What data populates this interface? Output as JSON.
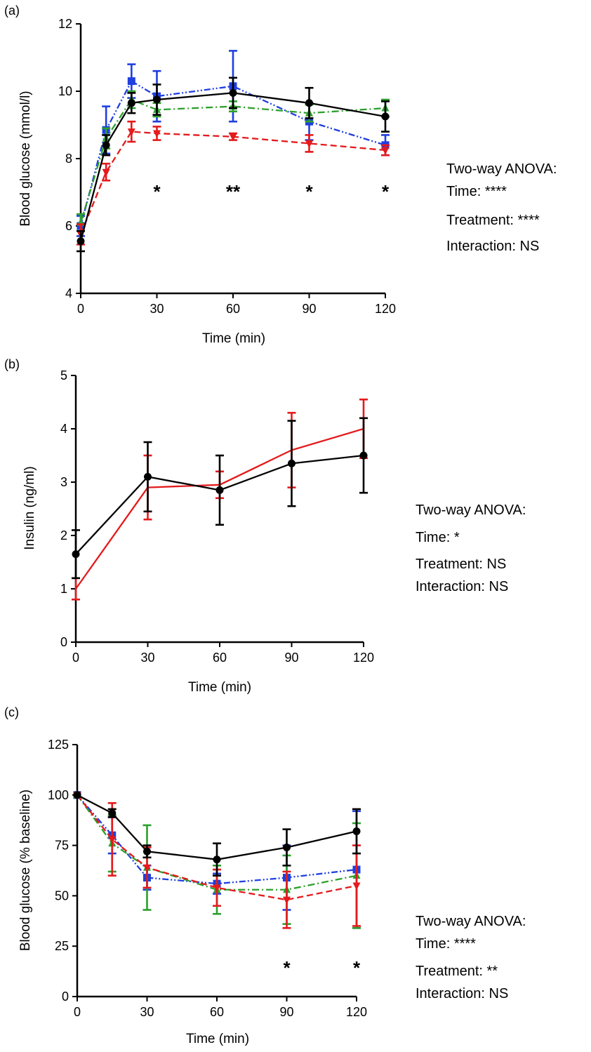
{
  "chart_data": [
    {
      "panel_label": "(a)",
      "type": "line",
      "xlabel": "Time (min)",
      "ylabel": "Blood glucose (mmol/l)",
      "xlim": [
        0,
        120
      ],
      "ylim": [
        4,
        12
      ],
      "xticks": [
        0,
        30,
        60,
        90,
        120
      ],
      "yticks": [
        4,
        6,
        8,
        10,
        12
      ],
      "grid": false,
      "legend": "none",
      "series": [
        {
          "color": "#000000",
          "line_style": "solid",
          "marker": "circle",
          "points": [
            [
              0,
              5.55,
              0.3
            ],
            [
              10,
              8.4,
              0.3
            ],
            [
              20,
              9.65,
              0.3
            ],
            [
              30,
              9.75,
              0.45
            ],
            [
              60,
              9.95,
              0.45
            ],
            [
              90,
              9.65,
              0.45
            ],
            [
              120,
              9.25,
              0.45
            ]
          ]
        },
        {
          "color": "#e41a1c",
          "line_style": "dashed",
          "marker": "triangle-down",
          "points": [
            [
              0,
              5.75,
              0.3
            ],
            [
              10,
              7.6,
              0.25
            ],
            [
              20,
              8.8,
              0.3
            ],
            [
              30,
              8.75,
              0.2
            ],
            [
              60,
              8.65,
              0.1
            ],
            [
              90,
              8.45,
              0.25
            ],
            [
              120,
              8.25,
              0.15
            ]
          ]
        },
        {
          "color": "#2ca02c",
          "line_style": "dash-dot",
          "marker": "triangle-up",
          "points": [
            [
              0,
              6.1,
              0.25
            ],
            [
              10,
              8.6,
              0.3
            ],
            [
              20,
              9.75,
              0.25
            ],
            [
              30,
              9.45,
              0.2
            ],
            [
              60,
              9.55,
              0.15
            ],
            [
              90,
              9.35,
              0.25
            ],
            [
              120,
              9.5,
              0.25
            ]
          ]
        },
        {
          "color": "#1f3fe0",
          "line_style": "dash-dot-dot",
          "marker": "square",
          "points": [
            [
              0,
              6.0,
              0.3
            ],
            [
              10,
              8.85,
              0.7
            ],
            [
              20,
              10.3,
              0.5
            ],
            [
              30,
              9.85,
              0.75
            ],
            [
              60,
              10.15,
              1.05
            ],
            [
              90,
              9.1,
              0.55
            ],
            [
              120,
              8.4,
              0.3
            ]
          ]
        }
      ],
      "significance": [
        {
          "x": 30,
          "label": "*"
        },
        {
          "x": 60,
          "label": "**"
        },
        {
          "x": 90,
          "label": "*"
        },
        {
          "x": 120,
          "label": "*"
        }
      ],
      "annotation": [
        "Two-way ANOVA:",
        "Time: ****",
        "Treatment: ****",
        "Interaction: NS"
      ]
    },
    {
      "panel_label": "(b)",
      "type": "line",
      "xlabel": "Time (min)",
      "ylabel": "Insulin (ng/ml)",
      "xlim": [
        0,
        120
      ],
      "ylim": [
        0,
        5
      ],
      "xticks": [
        0,
        30,
        60,
        90,
        120
      ],
      "yticks": [
        0,
        1,
        2,
        3,
        4,
        5
      ],
      "grid": false,
      "legend": "none",
      "series": [
        {
          "color": "#000000",
          "line_style": "solid",
          "marker": "circle",
          "points": [
            [
              0,
              1.65,
              0.45
            ],
            [
              30,
              3.1,
              0.65
            ],
            [
              60,
              2.85,
              0.65
            ],
            [
              90,
              3.35,
              0.8
            ],
            [
              120,
              3.5,
              0.7
            ]
          ]
        },
        {
          "color": "#e41a1c",
          "line_style": "solid",
          "marker": "none",
          "points": [
            [
              0,
              1.0,
              0.2
            ],
            [
              30,
              2.9,
              0.6
            ],
            [
              60,
              2.95,
              0.25
            ],
            [
              90,
              3.6,
              0.7
            ],
            [
              120,
              4.0,
              0.55
            ]
          ]
        }
      ],
      "significance": [],
      "annotation": [
        "Two-way ANOVA:",
        "Time: *",
        "Treatment: NS",
        "Interaction: NS"
      ]
    },
    {
      "panel_label": "(c)",
      "type": "line",
      "xlabel": "Time (min)",
      "ylabel": "Blood glucose (% baseline)",
      "xlim": [
        0,
        120
      ],
      "ylim": [
        0,
        125
      ],
      "xticks": [
        0,
        30,
        60,
        90,
        120
      ],
      "yticks": [
        0,
        25,
        50,
        75,
        100,
        125
      ],
      "grid": false,
      "legend": "none",
      "series": [
        {
          "color": "#000000",
          "line_style": "solid",
          "marker": "circle",
          "points": [
            [
              0,
              100,
              0
            ],
            [
              15,
              91,
              2
            ],
            [
              30,
              72,
              3
            ],
            [
              60,
              68,
              8
            ],
            [
              90,
              74,
              9
            ],
            [
              120,
              82,
              11
            ]
          ]
        },
        {
          "color": "#e41a1c",
          "line_style": "dashed",
          "marker": "triangle-down",
          "points": [
            [
              0,
              100,
              0
            ],
            [
              15,
              78,
              18
            ],
            [
              30,
              64,
              10
            ],
            [
              60,
              54,
              9
            ],
            [
              90,
              48,
              14
            ],
            [
              120,
              55,
              20
            ]
          ]
        },
        {
          "color": "#2ca02c",
          "line_style": "dash-dot",
          "marker": "triangle-up",
          "points": [
            [
              0,
              100,
              0
            ],
            [
              15,
              76,
              14
            ],
            [
              30,
              64,
              21
            ],
            [
              60,
              53,
              12
            ],
            [
              90,
              53,
              17
            ],
            [
              120,
              60,
              26
            ]
          ]
        },
        {
          "color": "#1f3fe0",
          "line_style": "dash-dot-dot",
          "marker": "square",
          "points": [
            [
              0,
              100,
              0
            ],
            [
              15,
              80,
              9
            ],
            [
              30,
              59,
              6
            ],
            [
              60,
              56,
              5
            ],
            [
              90,
              59,
              16
            ],
            [
              120,
              63,
              29
            ]
          ]
        }
      ],
      "significance": [
        {
          "x": 90,
          "label": "*"
        },
        {
          "x": 120,
          "label": "*"
        }
      ],
      "annotation": [
        "Two-way ANOVA:",
        "Time: ****",
        "Treatment: **",
        "Interaction: NS"
      ]
    }
  ]
}
